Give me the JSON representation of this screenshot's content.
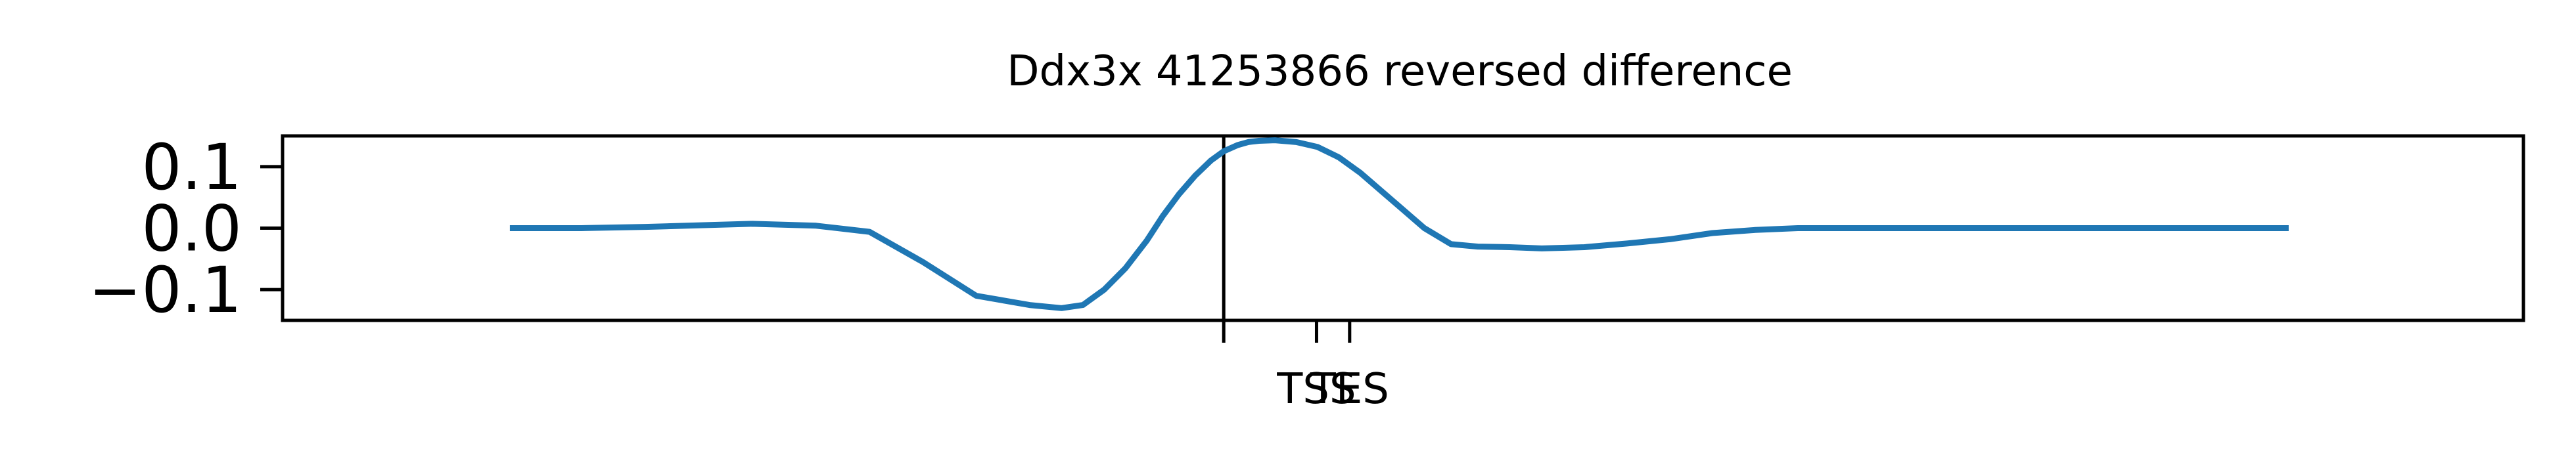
{
  "chart_data": {
    "type": "line",
    "title": "Ddx3x 41253866 reversed difference",
    "xlabel": "",
    "ylabel": "",
    "xlim": [
      -1000,
      1100
    ],
    "ylim": [
      -0.15,
      0.15
    ],
    "yticks": [
      {
        "value": 0.1,
        "label": "0.1"
      },
      {
        "value": 0.0,
        "label": "0.0"
      },
      {
        "value": -0.1,
        "label": "−0.1"
      }
    ],
    "xticks": [
      {
        "value": -118,
        "label": ""
      },
      {
        "value": -31,
        "label": "TSS"
      },
      {
        "value": 0,
        "label": "TES"
      }
    ],
    "vlines": [
      -118
    ],
    "grid": false,
    "series": [
      {
        "color": "#1f77b4",
        "x": [
          -787,
          -720,
          -660,
          -600,
          -560,
          -500,
          -450,
          -400,
          -350,
          -300,
          -270,
          -250,
          -230,
          -210,
          -190,
          -175,
          -160,
          -145,
          -130,
          -118,
          -105,
          -95,
          -85,
          -70,
          -50,
          -30,
          -10,
          10,
          30,
          50,
          70,
          95,
          120,
          150,
          180,
          200,
          220,
          260,
          300,
          340,
          380,
          420,
          460,
          500,
          550,
          600,
          650,
          700,
          750,
          800,
          850,
          880
        ],
        "y": [
          0.0,
          0.0,
          0.002,
          0.005,
          0.007,
          0.004,
          -0.006,
          -0.055,
          -0.11,
          -0.125,
          -0.13,
          -0.125,
          -0.1,
          -0.065,
          -0.02,
          0.02,
          0.055,
          0.085,
          0.11,
          0.125,
          0.135,
          0.14,
          0.142,
          0.143,
          0.14,
          0.132,
          0.115,
          0.09,
          0.06,
          0.03,
          0.0,
          -0.026,
          -0.03,
          -0.031,
          -0.033,
          -0.032,
          -0.031,
          -0.025,
          -0.018,
          -0.008,
          -0.003,
          0.0,
          0.0,
          0.0,
          0.0,
          0.0,
          0.0,
          0.0,
          0.0,
          0.0,
          0.0,
          0.0
        ]
      }
    ]
  }
}
